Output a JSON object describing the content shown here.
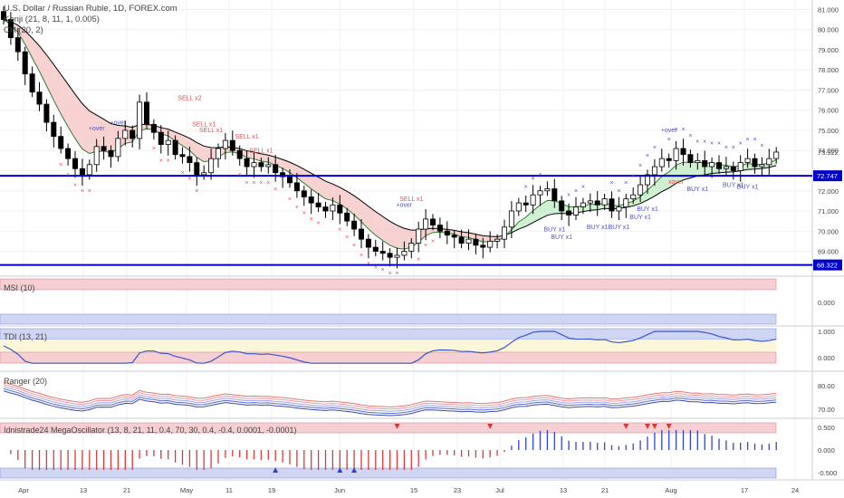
{
  "header": {
    "title": "U.S. Dollar / Russian Ruble, 1D, FOREX.com",
    "ind1": "Kenji (21, 8, 11, 1, 0.005)",
    "ind2": "CH (20, 2)"
  },
  "panes": {
    "msi": "MSI (10)",
    "tdi": "TDI (13, 21)",
    "ranger": "Ranger (20)",
    "mega": "Idnistrade24 MegaOscillator (13, 8, 21, 11, 0.4, 70, 30, 0.4, -0.4, 0.0001, -0.0001)"
  },
  "price_axis": {
    "ticks": [
      "81.000",
      "80.000",
      "79.000",
      "78.000",
      "77.000",
      "76.000",
      "75.000",
      "74.000",
      "73.922",
      "72.000",
      "71.000",
      "70.000",
      "69.000"
    ],
    "tag_upper": "72.747",
    "tag_lower": "68.322",
    "tag_last": "73.922"
  },
  "sub_axes": {
    "msi": [
      "0.000"
    ],
    "tdi": [
      "1.000",
      "0.000"
    ],
    "ranger": [
      "80.00",
      "70.00"
    ],
    "mega": [
      "0.500",
      "0.000",
      "-0.500"
    ]
  },
  "x_ticks": [
    "Apr",
    "13",
    "21",
    "May",
    "11",
    "19",
    "Jun",
    "15",
    "23",
    "Jul",
    "13",
    "21",
    "Aug",
    "17",
    "24"
  ],
  "signals": {
    "sell": [
      "SELL x2",
      "SELL x1",
      "SELL x1",
      "SELL x1",
      "SELL x1",
      "SELL x1"
    ],
    "buy": [
      "BUY x1",
      "BUY x1",
      "BUY x1",
      "BUY x1",
      "BUY x1",
      "BUY x1",
      "BUY x1",
      "BUY x1",
      "BUY x1"
    ],
    "over": [
      "+over",
      "+over",
      "+over",
      "+over"
    ],
    "xover": "xover"
  },
  "colors": {
    "up": "#ffffff",
    "down": "#000000",
    "level": "#0000cc",
    "sell_marker": "#e05050",
    "buy_marker": "#5050c0",
    "cloud_bear": "#f7c9c9",
    "cloud_bull": "#c8efc8",
    "msi_band": "#f6cfd2",
    "tdi_band_top": "#cfd6f4",
    "tdi_band_bot": "#f6cfd2"
  },
  "chart_data": {
    "type": "candlestick",
    "levels": [
      72.747,
      68.322
    ],
    "last": 73.922,
    "ylim": [
      67.9,
      81.2
    ],
    "closes": [
      80.5,
      79.6,
      78.9,
      77.8,
      76.9,
      76.3,
      75.4,
      74.7,
      74.1,
      73.6,
      73.1,
      72.8,
      73.3,
      74.2,
      74.0,
      73.7,
      74.6,
      75.0,
      74.6,
      76.4,
      75.3,
      74.9,
      74.3,
      74.5,
      73.8,
      73.7,
      73.4,
      72.8,
      72.9,
      73.6,
      74.1,
      74.5,
      74.0,
      73.6,
      73.2,
      73.4,
      73.2,
      73.3,
      72.9,
      72.7,
      72.4,
      72.0,
      71.7,
      71.4,
      71.2,
      71.0,
      71.3,
      70.9,
      70.5,
      70.1,
      69.6,
      69.2,
      69.0,
      68.9,
      68.7,
      68.8,
      69.0,
      69.4,
      70.1,
      70.6,
      70.3,
      70.0,
      69.8,
      69.7,
      69.4,
      69.6,
      69.3,
      69.2,
      69.5,
      69.6,
      70.2,
      71.0,
      71.4,
      71.3,
      71.8,
      72.0,
      72.1,
      71.5,
      71.0,
      70.8,
      71.2,
      71.4,
      71.5,
      71.3,
      71.6,
      71.0,
      71.2,
      71.6,
      71.8,
      72.3,
      72.8,
      73.2,
      73.6,
      73.5,
      74.1,
      73.8,
      73.4,
      73.5,
      73.2,
      73.4,
      73.1,
      73.2,
      73.0,
      73.4,
      73.6,
      73.2,
      73.3,
      73.6,
      73.922
    ]
  }
}
